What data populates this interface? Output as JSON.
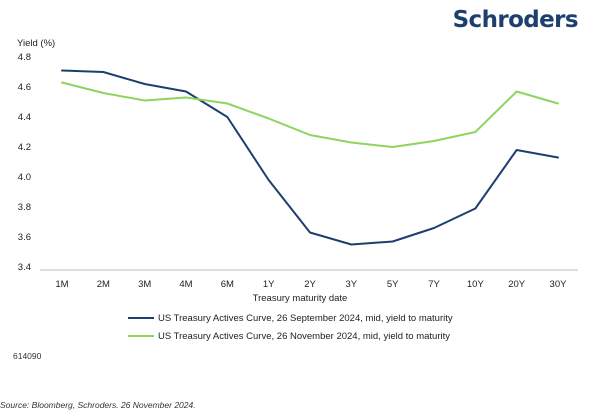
{
  "brand": "Schroders",
  "code": "614090",
  "source": "Source: Bloomberg, Schroders. 26 November 2024.",
  "chart_data": {
    "type": "line",
    "ylabel": "Yield (%)",
    "xlabel": "Treasury maturity date",
    "ylim": [
      3.4,
      4.8
    ],
    "yticks": [
      "4.8",
      "4.6",
      "4.4",
      "4.2",
      "4.0",
      "3.8",
      "3.6",
      "3.4"
    ],
    "categories": [
      "1M",
      "2M",
      "3M",
      "4M",
      "6M",
      "1Y",
      "2Y",
      "3Y",
      "5Y",
      "7Y",
      "10Y",
      "20Y",
      "30Y"
    ],
    "grid": false,
    "legend_position": "bottom",
    "series": [
      {
        "name": "US Treasury Actives Curve, 26 September 2024, mid, yield to maturity",
        "color": "#1d3f6e",
        "values": [
          4.71,
          4.7,
          4.62,
          4.57,
          4.4,
          3.98,
          3.63,
          3.55,
          3.57,
          3.66,
          3.79,
          4.18,
          4.13
        ]
      },
      {
        "name": "US Treasury Actives Curve, 26 November 2024, mid, yield to maturity",
        "color": "#8fd45c",
        "values": [
          4.63,
          4.56,
          4.51,
          4.53,
          4.49,
          4.39,
          4.28,
          4.23,
          4.2,
          4.24,
          4.3,
          4.57,
          4.49
        ]
      }
    ]
  }
}
